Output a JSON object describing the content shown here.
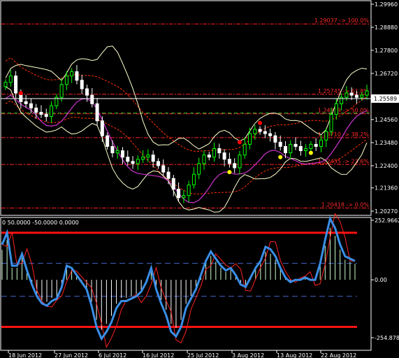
{
  "price_axis": {
    "labels": [
      "1.29960",
      "1.28880",
      "1.27800",
      "1.26720",
      "1.25589",
      "1.24560",
      "1.23480",
      "1.22400",
      "1.21360",
      "1.20270"
    ],
    "current": "1.25589"
  },
  "fib_levels": [
    {
      "label": "1.29037 -> 100.0%"
    },
    {
      "label": "1.25745 -> 61.8%"
    },
    {
      "label": "1.24829 -> 50.0%"
    },
    {
      "label": "1.23710 -> 38.2%"
    },
    {
      "label": "1.22455 -> 23.6%"
    },
    {
      "label": "1.20418 -> 0.0%"
    }
  ],
  "indicator": {
    "title": "0 50.0000 -50.0000 0.0000",
    "axis_labels": [
      "252.9662",
      "0.00",
      "-254.8785"
    ]
  },
  "time_axis": {
    "labels": [
      "18 Jun 2012",
      "27 Jun 2012",
      "6 Jul 2012",
      "16 Jul 2012",
      "25 Jul 2012",
      "3 Aug 2012",
      "13 Aug 2012",
      "22 Aug 2012"
    ]
  },
  "colors": {
    "background": "#000000",
    "bull_candle": "#00ff00",
    "bear_candle": "#ffffff",
    "bollinger": "#ffffcc",
    "envelope": "#ff3300",
    "ma_purple": "#cc33cc",
    "fib": "#ff2222",
    "signal_line": "#3a8ee6",
    "fast_line": "#ff2222",
    "hist": "#ffffff",
    "level_band": "#4466cc",
    "extreme_band": "#ff1111",
    "dot_red": "#ff0000",
    "dot_yellow": "#ffff00"
  },
  "chart_data": {
    "type": "line",
    "price_candles_close": [
      1.263,
      1.266,
      1.258,
      1.254,
      1.253,
      1.251,
      1.249,
      1.248,
      1.247,
      1.252,
      1.256,
      1.262,
      1.266,
      1.268,
      1.264,
      1.26,
      1.257,
      1.253,
      1.245,
      1.238,
      1.233,
      1.23,
      1.231,
      1.228,
      1.226,
      1.225,
      1.227,
      1.228,
      1.229,
      1.226,
      1.224,
      1.221,
      1.218,
      1.213,
      1.209,
      1.21,
      1.215,
      1.22,
      1.225,
      1.229,
      1.228,
      1.232,
      1.23,
      1.227,
      1.225,
      1.223,
      1.229,
      1.234,
      1.239,
      1.241,
      1.24,
      1.239,
      1.238,
      1.235,
      1.233,
      1.23,
      1.234,
      1.233,
      1.231,
      1.232,
      1.234,
      1.233,
      1.236,
      1.24,
      1.248,
      1.253,
      1.256,
      1.258,
      1.257,
      1.256,
      1.257,
      1.259
    ],
    "indicator_blue": [
      150,
      200,
      60,
      60,
      110,
      40,
      -20,
      -70,
      -100,
      -110,
      -90,
      -80,
      -30,
      60,
      50,
      20,
      -10,
      -40,
      -110,
      -200,
      -250,
      -220,
      -180,
      -120,
      -90,
      -90,
      -80,
      -70,
      -50,
      -10,
      50,
      -40,
      -100,
      -150,
      -220,
      -240,
      -200,
      -120,
      -80,
      -40,
      20,
      80,
      120,
      90,
      60,
      40,
      50,
      20,
      -20,
      -30,
      10,
      50,
      80,
      140,
      130,
      100,
      50,
      10,
      -10,
      0,
      0,
      10,
      0,
      0,
      70,
      170,
      260,
      220,
      150,
      100,
      90,
      80
    ],
    "indicator_axis": {
      "ylim": [
        -254.8785,
        252.9662
      ],
      "levels": [
        200,
        70,
        -70,
        -200
      ]
    }
  }
}
